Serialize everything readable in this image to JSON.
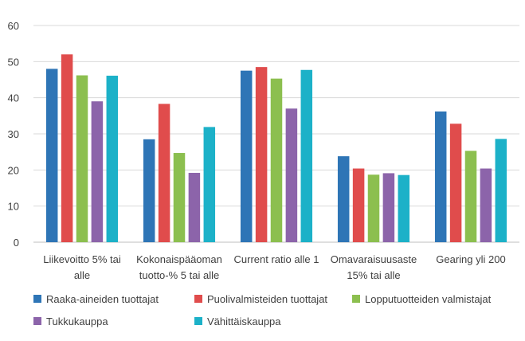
{
  "chart_data": {
    "type": "bar",
    "categories": [
      [
        "Liikevoitto 5% tai",
        "alle"
      ],
      [
        "Kokonaispääoman",
        "tuotto-% 5 tai alle"
      ],
      [
        "Current ratio alle 1"
      ],
      [
        "Omavaraisuusaste",
        "15% tai alle"
      ],
      [
        "Gearing yli 200"
      ]
    ],
    "series": [
      {
        "name": "Raaka-aineiden tuottajat",
        "color": "#2e75b6",
        "values": [
          48,
          28.5,
          47.5,
          23.8,
          36.2
        ]
      },
      {
        "name": "Puolivalmisteiden tuottajat",
        "color": "#e04c4c",
        "values": [
          52,
          38.3,
          48.5,
          20.4,
          32.8
        ]
      },
      {
        "name": "Lopputuotteiden valmistajat",
        "color": "#8cbf4f",
        "values": [
          46.2,
          24.7,
          45.3,
          18.7,
          25.3
        ]
      },
      {
        "name": "Tukkukauppa",
        "color": "#8c64aa",
        "values": [
          39,
          19.2,
          37,
          19.1,
          20.4
        ]
      },
      {
        "name": "Vähittäiskauppa",
        "color": "#1cb1c8",
        "values": [
          46.1,
          31.9,
          47.7,
          18.6,
          28.6
        ]
      }
    ],
    "ylim": [
      0,
      60
    ],
    "yticks": [
      "0",
      "10",
      "20",
      "30",
      "40",
      "50",
      "60"
    ],
    "grid": true,
    "legend_position": "bottom",
    "title": "",
    "xlabel": "",
    "ylabel": ""
  }
}
